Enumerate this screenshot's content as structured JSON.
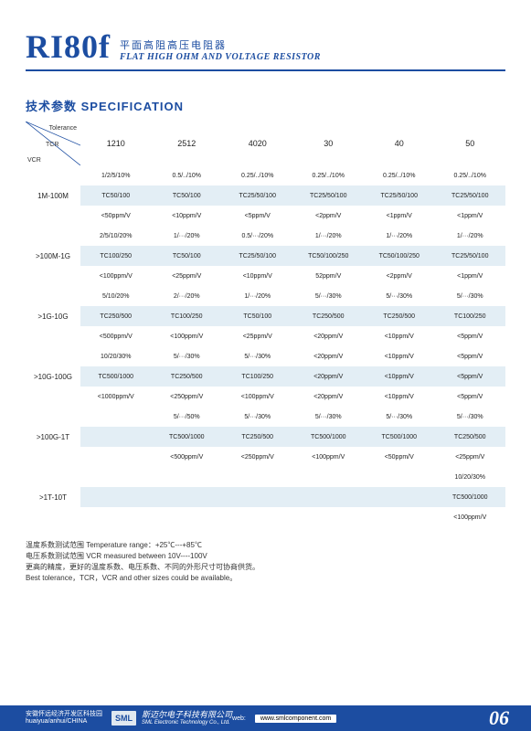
{
  "header": {
    "title": "RI80f",
    "sub_cn": "平面高阻高压电阻器",
    "sub_en": "FLAT HIGH OHM AND VOLTAGE RESISTOR"
  },
  "section_title": "技术参数 SPECIFICATION",
  "corner": {
    "tol": "Tolerance",
    "tcr": "TCR",
    "vcr": "VCR"
  },
  "columns": [
    "1210",
    "2512",
    "4020",
    "30",
    "40",
    "50"
  ],
  "groups": [
    {
      "label": "1M-100M",
      "rows": [
        [
          "1/2/5/10%",
          "0.5/../10%",
          "0.25/../10%",
          "0.25/../10%",
          "0.25/../10%",
          "0.25/../10%"
        ],
        [
          "TC50/100",
          "TC50/100",
          "TC25/50/100",
          "TC25/50/100",
          "TC25/50/100",
          "TC25/50/100"
        ],
        [
          "<50ppm/V",
          "<10ppm/V",
          "<5ppm/V",
          "<2ppm/V",
          "<1ppm/V",
          "<1ppm/V"
        ]
      ]
    },
    {
      "label": ">100M-1G",
      "rows": [
        [
          "2/5/10/20%",
          "1/···/20%",
          "0.5/···/20%",
          "1/···/20%",
          "1/···/20%",
          "1/···/20%"
        ],
        [
          "TC100/250",
          "TC50/100",
          "TC25/50/100",
          "TC50/100/250",
          "TC50/100/250",
          "TC25/50/100"
        ],
        [
          "<100ppm/V",
          "<25ppm/V",
          "<10ppm/V",
          "52ppm/V",
          "<2ppm/V",
          "<1ppm/V"
        ]
      ]
    },
    {
      "label": ">1G-10G",
      "rows": [
        [
          "5/10/20%",
          "2/···/20%",
          "1/···/20%",
          "5/···/30%",
          "5/···/30%",
          "5/···/30%"
        ],
        [
          "TC250/500",
          "TC100/250",
          "TC50/100",
          "TC250/500",
          "TC250/500",
          "TC100/250"
        ],
        [
          "<500ppm/V",
          "<100ppm/V",
          "<25ppm/V",
          "<20ppm/V",
          "<10ppm/V",
          "<5ppm/V"
        ]
      ]
    },
    {
      "label": ">10G-100G",
      "rows": [
        [
          "10/20/30%",
          "5/···/30%",
          "5/···/30%",
          "<20ppm/V",
          "<10ppm/V",
          "<5ppm/V"
        ],
        [
          "TC500/1000",
          "TC250/500",
          "TC100/250",
          "<20ppm/V",
          "<10ppm/V",
          "<5ppm/V"
        ],
        [
          "<1000ppm/V",
          "<250ppm/V",
          "<100ppm/V",
          "<20ppm/V",
          "<10ppm/V",
          "<5ppm/V"
        ]
      ]
    },
    {
      "label": ">100G-1T",
      "rows": [
        [
          "",
          "5/···/50%",
          "5/···/30%",
          "5/···/30%",
          "5/···/30%",
          "5/···/30%"
        ],
        [
          "",
          "TC500/1000",
          "TC250/500",
          "TC500/1000",
          "TC500/1000",
          "TC250/500"
        ],
        [
          "",
          "<500ppm/V",
          "<250ppm/V",
          "<100ppm/V",
          "<50ppm/V",
          "<25ppm/V"
        ]
      ]
    },
    {
      "label": ">1T-10T",
      "rows": [
        [
          "",
          "",
          "",
          "",
          "",
          "10/20/30%"
        ],
        [
          "",
          "",
          "",
          "",
          "",
          "TC500/1000"
        ],
        [
          "",
          "",
          "",
          "",
          "",
          "<100ppm/V"
        ]
      ]
    }
  ],
  "notes": [
    "温度系数测试范围 Temperature range：+25℃---+85℃",
    "电压系数测试范围 VCR measured between 10V----100V",
    "更高的精度，更好的温度系数、电压系数、不同的外形尺寸可协商供货。",
    "Best tolerance，TCR，VCR and other sizes could be available。"
  ],
  "footer": {
    "addr_cn": "安徽怀远经济开发区科技园",
    "addr_en": "huaiyua/anhui/CHINA",
    "logo": "SML",
    "company_cn": "斯迈尔电子科技有限公司",
    "company_en": "SML Electronic Technology Co., Ltd.",
    "web_label": "web:",
    "web": "www.smlcomponent.com",
    "page": "06"
  },
  "style": {
    "brand_color": "#1c4da1",
    "stripe_color": "#e3eef5",
    "bg": "#ffffff"
  }
}
